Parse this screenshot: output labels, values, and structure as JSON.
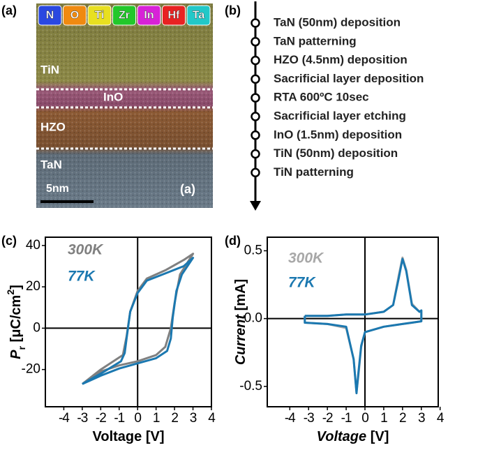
{
  "panel_a": {
    "label": "(a)",
    "elements": [
      {
        "symbol": "N",
        "color": "#2a48e0"
      },
      {
        "symbol": "O",
        "color": "#f08a10"
      },
      {
        "symbol": "Ti",
        "color": "#e8e020"
      },
      {
        "symbol": "Zr",
        "color": "#22c82a"
      },
      {
        "symbol": "In",
        "color": "#d822d8"
      },
      {
        "symbol": "Hf",
        "color": "#e82222"
      },
      {
        "symbol": "Ta",
        "color": "#22c8c8"
      }
    ],
    "layers": [
      "TiN",
      "InO",
      "HZO",
      "TaN"
    ],
    "scale_bar": "5nm",
    "inner_label": "(a)"
  },
  "panel_b": {
    "label": "(b)",
    "steps": [
      "TaN (50nm) deposition",
      "TaN patterning",
      "HZO (4.5nm) deposition",
      "Sacrificial layer deposition",
      "RTA 600ºC 10sec",
      "Sacrificial layer etching",
      "InO (1.5nm) deposition",
      "TiN (50nm) deposition",
      "TiN  patterning"
    ]
  },
  "chart_data": [
    {
      "type": "line",
      "label": "(c)",
      "xlabel": [
        "Voltage [V]"
      ],
      "ylabel": [
        "P",
        "r",
        " [μC/cm",
        "2",
        "]"
      ],
      "xlim": [
        -5,
        4
      ],
      "xticks": [
        -4,
        -3,
        -2,
        -1,
        0,
        1,
        2,
        3,
        4
      ],
      "ylim": [
        -38,
        44
      ],
      "yticks": [
        -20,
        0,
        20,
        40
      ],
      "series": [
        {
          "name": "300K",
          "color": "#808080",
          "x": [
            -3,
            -2,
            -1,
            0,
            1,
            1.5,
            1.8,
            2,
            2.3,
            3,
            2.5,
            1.5,
            0.5,
            0,
            -0.4,
            -0.6,
            -0.8,
            -2,
            -3
          ],
          "values": [
            -27,
            -21,
            -18,
            -16,
            -13,
            -9,
            0,
            12,
            26,
            36,
            33,
            28,
            24,
            18,
            8,
            -4,
            -13,
            -20,
            -27
          ]
        },
        {
          "name": "77K",
          "color": "#1b78b0",
          "x": [
            -3,
            -2,
            -1,
            0,
            1,
            1.6,
            1.8,
            1.9,
            2.1,
            2.4,
            3,
            2.5,
            1.5,
            0.5,
            0,
            -0.4,
            -0.6,
            -0.7,
            -0.9,
            -2,
            -3
          ],
          "values": [
            -27,
            -23,
            -19.5,
            -17,
            -14.5,
            -11,
            -5,
            5,
            18,
            26,
            34,
            30,
            26.5,
            23,
            17,
            8,
            -5,
            -12,
            -16,
            -22,
            -27
          ]
        }
      ]
    },
    {
      "type": "line",
      "label": "(d)",
      "xlabel": [
        "Voltage",
        " [V]"
      ],
      "ylabel": [
        "Current",
        " [mA]"
      ],
      "xlim": [
        -5.2,
        3.9
      ],
      "xticks": [
        -4,
        -3,
        -2,
        -1,
        0,
        1,
        2,
        3,
        4
      ],
      "ylim": [
        -0.65,
        0.6
      ],
      "yticks": [
        -0.5,
        {
          "value": 0,
          "label": "0.0"
        },
        0.5
      ],
      "series": [
        {
          "name": "300K",
          "color": "#a8a8a8",
          "x": [
            -3.2,
            -2,
            -1,
            0,
            1,
            1.5,
            1.8,
            2,
            2.2,
            2.5,
            2.9,
            3,
            3,
            2.5,
            2,
            1,
            0,
            -0.2,
            -0.35,
            -0.45,
            -0.6,
            -1,
            -2,
            -3.2,
            -3.2
          ],
          "values": [
            0.02,
            0.02,
            0.03,
            0.03,
            0.05,
            0.1,
            0.32,
            0.45,
            0.36,
            0.11,
            0.05,
            0.06,
            -0.02,
            -0.03,
            -0.04,
            -0.06,
            -0.1,
            -0.21,
            -0.42,
            -0.54,
            -0.3,
            -0.07,
            -0.04,
            -0.03,
            0.02
          ]
        },
        {
          "name": "77K",
          "color": "#1b78b0",
          "x": [
            -3.2,
            -2,
            -1,
            0,
            1,
            1.5,
            1.8,
            2,
            2.2,
            2.5,
            2.9,
            3,
            3,
            2.5,
            2,
            1,
            0,
            -0.2,
            -0.35,
            -0.45,
            -0.6,
            -1,
            -2,
            -3.2,
            -3.2
          ],
          "values": [
            0.02,
            0.02,
            0.03,
            0.03,
            0.05,
            0.1,
            0.3,
            0.44,
            0.35,
            0.1,
            0.05,
            0.06,
            -0.02,
            -0.03,
            -0.04,
            -0.06,
            -0.1,
            -0.2,
            -0.4,
            -0.55,
            -0.3,
            -0.06,
            -0.04,
            -0.03,
            0.02
          ]
        }
      ]
    }
  ]
}
